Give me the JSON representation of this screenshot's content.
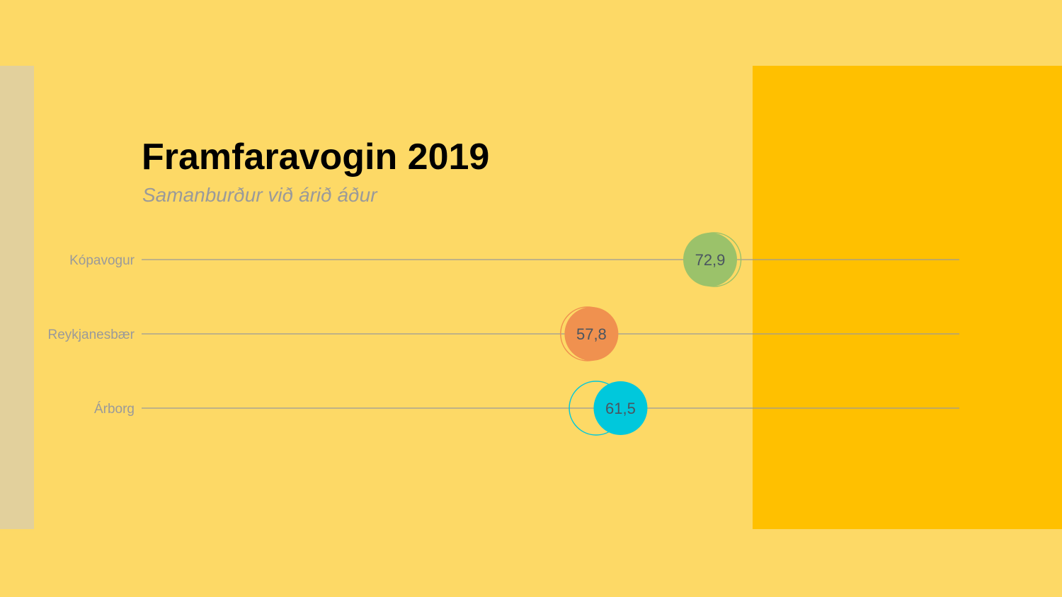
{
  "colors": {
    "background": "#fdd966",
    "left_panel": "#e2d09c",
    "right_panel": "#ffc000",
    "gridline": "#9a9a9a",
    "label": "#9a9a9a",
    "value_text": "#4a5560"
  },
  "header": {
    "title": "Framfaravogin 2019",
    "subtitle": "Samanburður við árið áður"
  },
  "chart_data": {
    "type": "dot",
    "title": "Framfaravogin 2019",
    "subtitle": "Samanburður við árið áður",
    "categories": [
      "Kópavogur",
      "Reykjanesbær",
      "Árborg"
    ],
    "values_2019": [
      72.9,
      57.8,
      61.5
    ],
    "value_labels": [
      "72,9",
      "57,8",
      "61,5"
    ],
    "values_previous_year": [
      73.4,
      57.3,
      58.4
    ],
    "point_colors": [
      "#9bc26a",
      "#f0914f",
      "#00c8dc"
    ]
  }
}
